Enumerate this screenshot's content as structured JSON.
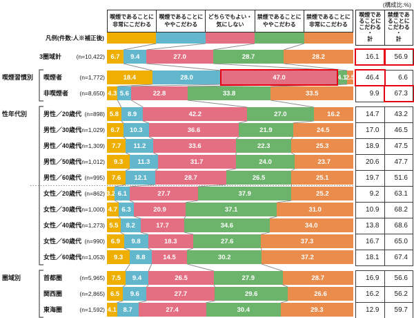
{
  "chart_data": {
    "type": "bar",
    "variant": "horizontal-stacked-100percent",
    "unit_note": "(構成比:%)",
    "legend_row_label": "凡例(件数:人※補正後)",
    "legend_position": "top",
    "xlim": [
      0,
      100
    ],
    "series": [
      {
        "name": "喫煙であることに\n非常にこだわる",
        "color": "#EEAF00"
      },
      {
        "name": "喫煙であることに\nややこだわる",
        "color": "#62B7CD"
      },
      {
        "name": "どちらでもよい・\n気にしない",
        "color": "#E56F82"
      },
      {
        "name": "禁煙であることに\nややこだわる",
        "color": "#6CB46C"
      },
      {
        "name": "禁煙であることに\n非常にこだわる",
        "color": "#EA8C4B"
      }
    ],
    "totals_header": [
      "喫煙であ\nることに\nこだわる\n・\n計",
      "禁煙であ\nることに\nこだわる\n・\n計"
    ],
    "highlight_color": "#E60012",
    "groups": [
      {
        "label": "",
        "rows": [
          {
            "label": "3圏域計",
            "n": "(n=10,422)",
            "values": [
              "6.7",
              "9.4",
              "27.0",
              "28.7",
              "28.2"
            ],
            "totals": [
              "16.1",
              "56.9"
            ],
            "totals_red": [
              true,
              true
            ]
          }
        ]
      },
      {
        "label": "喫煙習慣別",
        "rows": [
          {
            "label": "喫煙者",
            "n": "(n=1,772)",
            "values": [
              "18.4",
              "28.0",
              "47.0",
              "4.1",
              "2.5"
            ],
            "totals": [
              "46.4",
              "6.6"
            ],
            "totals_red": [
              true,
              false
            ],
            "segment_red": 2
          },
          {
            "label": "非喫煙者",
            "n": "(n=8,650)",
            "values": [
              "4.3",
              "5.6",
              "22.8",
              "33.8",
              "33.5"
            ],
            "totals": [
              "9.9",
              "67.3"
            ],
            "totals_red": [
              false,
              true
            ]
          }
        ]
      },
      {
        "label": "性年代別",
        "divider_after": 4,
        "rows": [
          {
            "label": "男性／20歳代",
            "n": "(n=898)",
            "values": [
              "5.8",
              "8.9",
              "42.2",
              "27.0",
              "16.2"
            ],
            "totals": [
              "14.7",
              "43.2"
            ]
          },
          {
            "label": "男性／30歳代",
            "n": "(n=1,029)",
            "values": [
              "6.7",
              "10.3",
              "36.6",
              "21.9",
              "24.5"
            ],
            "totals": [
              "17.0",
              "46.5"
            ]
          },
          {
            "label": "男性／40歳代",
            "n": "(n=1,309)",
            "values": [
              "7.7",
              "11.2",
              "33.6",
              "22.3",
              "25.3"
            ],
            "totals": [
              "18.9",
              "47.5"
            ]
          },
          {
            "label": "男性／50歳代",
            "n": "(n=1,012)",
            "values": [
              "9.3",
              "11.3",
              "31.7",
              "24.0",
              "23.7"
            ],
            "totals": [
              "20.6",
              "47.7"
            ]
          },
          {
            "label": "男性／60歳代",
            "n": "(n=995)",
            "values": [
              "7.6",
              "12.1",
              "28.7",
              "26.5",
              "25.1"
            ],
            "totals": [
              "19.7",
              "51.6"
            ]
          },
          {
            "label": "女性／20歳代",
            "n": "(n=862)",
            "values": [
              "3.2",
              "6.1",
              "27.7",
              "37.9",
              "25.2"
            ],
            "totals": [
              "9.2",
              "63.1"
            ]
          },
          {
            "label": "女性／30歳代",
            "n": "(n=1,000)",
            "values": [
              "4.7",
              "6.3",
              "20.9",
              "37.1",
              "31.0"
            ],
            "totals": [
              "10.9",
              "68.2"
            ]
          },
          {
            "label": "女性／40歳代",
            "n": "(n=1,273)",
            "values": [
              "5.5",
              "8.2",
              "17.7",
              "34.6",
              "34.0"
            ],
            "totals": [
              "13.8",
              "68.6"
            ]
          },
          {
            "label": "女性／50歳代",
            "n": "(n=990)",
            "values": [
              "6.9",
              "9.8",
              "18.3",
              "27.6",
              "37.3"
            ],
            "totals": [
              "16.7",
              "65.0"
            ]
          },
          {
            "label": "女性／60歳代",
            "n": "(n=1,053)",
            "values": [
              "9.3",
              "8.8",
              "14.5",
              "30.2",
              "37.2"
            ],
            "totals": [
              "18.1",
              "67.4"
            ]
          }
        ]
      },
      {
        "label": "圏域別",
        "rows": [
          {
            "label": "首都圏",
            "n": "(n=5,965)",
            "values": [
              "7.5",
              "9.4",
              "26.5",
              "27.9",
              "28.7"
            ],
            "totals": [
              "16.9",
              "56.6"
            ]
          },
          {
            "label": "関西圏",
            "n": "(n=2,865)",
            "values": [
              "6.5",
              "9.6",
              "27.7",
              "29.6",
              "26.6"
            ],
            "totals": [
              "16.2",
              "56.2"
            ]
          },
          {
            "label": "東海圏",
            "n": "(n=1,592)",
            "values": [
              "4.1",
              "8.7",
              "27.4",
              "30.4",
              "29.3"
            ],
            "totals": [
              "12.9",
              "59.7"
            ]
          }
        ]
      }
    ]
  }
}
